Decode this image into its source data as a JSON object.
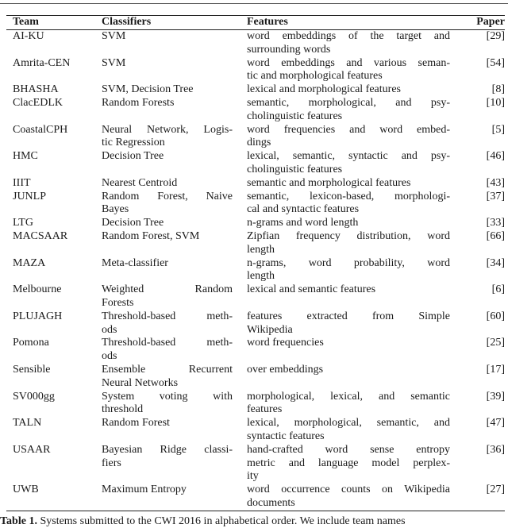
{
  "table": {
    "headers": {
      "team": "Team",
      "classifiers": "Classifiers",
      "features": "Features",
      "paper": "Paper"
    },
    "rows": [
      {
        "team": "AI-KU",
        "classifiers": [
          "SVM"
        ],
        "features": [
          "word embeddings of the target and",
          "surrounding words"
        ],
        "paper": "[29]"
      },
      {
        "team": "Amrita-CEN",
        "classifiers": [
          "SVM"
        ],
        "features": [
          "word embeddings and various seman-",
          "tic and morphological features"
        ],
        "paper": "[54]"
      },
      {
        "team": "BHASHA",
        "classifiers": [
          "SVM, Decision Tree"
        ],
        "features": [
          "lexical and morphological features"
        ],
        "paper": "[8]"
      },
      {
        "team": "ClacEDLK",
        "classifiers": [
          "Random Forests"
        ],
        "features": [
          "semantic, morphological, and psy-",
          "cholinguistic features"
        ],
        "paper": "[10]"
      },
      {
        "team": "CoastalCPH",
        "classifiers": [
          "Neural Network, Logis-",
          "tic Regression"
        ],
        "features": [
          "word frequencies and word embed-",
          "dings"
        ],
        "paper": "[5]"
      },
      {
        "team": "HMC",
        "classifiers": [
          "Decision Tree"
        ],
        "features": [
          "lexical, semantic, syntactic and psy-",
          "cholinguistic features"
        ],
        "paper": "[46]"
      },
      {
        "team": "IIIT",
        "classifiers": [
          "Nearest Centroid"
        ],
        "features": [
          "semantic and morphological features"
        ],
        "paper": "[43]"
      },
      {
        "team": "JUNLP",
        "classifiers": [
          "Random Forest, Naive",
          "Bayes"
        ],
        "features": [
          "semantic, lexicon-based, morphologi-",
          "cal and syntactic features"
        ],
        "paper": "[37]"
      },
      {
        "team": "LTG",
        "classifiers": [
          "Decision Tree"
        ],
        "features": [
          "n-grams and word length"
        ],
        "paper": "[33]"
      },
      {
        "team": "MACSAAR",
        "classifiers": [
          "Random Forest, SVM"
        ],
        "features": [
          "Zipfian frequency distribution, word",
          "length"
        ],
        "paper": "[66]"
      },
      {
        "team": "MAZA",
        "classifiers": [
          "Meta-classifier"
        ],
        "features": [
          "n-grams, word probability, word",
          "length"
        ],
        "paper": "[34]"
      },
      {
        "team": "Melbourne",
        "classifiers": [
          "Weighted Random",
          "Forests"
        ],
        "features": [
          "lexical and semantic features"
        ],
        "paper": "[6]"
      },
      {
        "team": "PLUJAGH",
        "classifiers": [
          "Threshold-based meth-",
          "ods"
        ],
        "features": [
          "features extracted from Simple",
          "Wikipedia"
        ],
        "paper": "[60]"
      },
      {
        "team": "Pomona",
        "classifiers": [
          "Threshold-based meth-",
          "ods"
        ],
        "features": [
          "word frequencies"
        ],
        "paper": "[25]"
      },
      {
        "team": "Sensible",
        "classifiers": [
          "Ensemble Recurrent",
          "Neural Networks"
        ],
        "features": [
          "over embeddings"
        ],
        "paper": "[17]"
      },
      {
        "team": "SV000gg",
        "classifiers": [
          "System voting with",
          "threshold"
        ],
        "features": [
          "morphological, lexical, and semantic",
          "features"
        ],
        "paper": "[39]"
      },
      {
        "team": "TALN",
        "classifiers": [
          "Random Forest"
        ],
        "features": [
          "lexical, morphological, semantic, and",
          "syntactic features"
        ],
        "paper": "[47]"
      },
      {
        "team": "USAAR",
        "classifiers": [
          "Bayesian Ridge classi-",
          "fiers"
        ],
        "features": [
          "hand-crafted word sense entropy",
          "metric and language model perplex-",
          "ity"
        ],
        "paper": "[36]"
      },
      {
        "team": "UWB",
        "classifiers": [
          "Maximum Entropy"
        ],
        "features": [
          "word occurrence counts on Wikipedia",
          "documents"
        ],
        "paper": "[27]"
      }
    ]
  },
  "caption": {
    "label": "Table 1.",
    "text": " Systems submitted to the CWI 2016 in alphabetical order. We include team names"
  }
}
